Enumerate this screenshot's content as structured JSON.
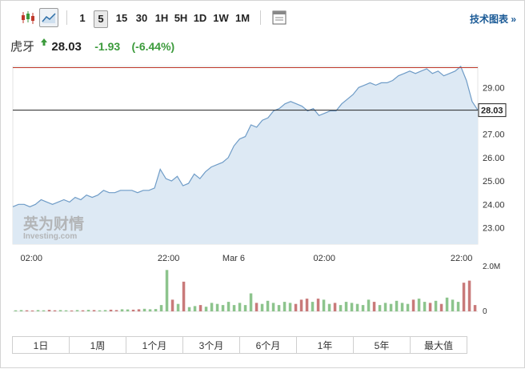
{
  "toolbar": {
    "intervals": [
      "1",
      "5",
      "15",
      "30",
      "1H",
      "5H",
      "1D",
      "1W",
      "1M"
    ],
    "active_interval": "5",
    "tech_chart_label": "技术图表 »"
  },
  "quote": {
    "name": "虎牙",
    "price": "28.03",
    "change": "-1.93",
    "change_pct": "(-6.44%)",
    "up_color": "#3c9b3c",
    "down_color": "#c0392b"
  },
  "watermark": {
    "line1": "英为财情",
    "line2": "Investing.com"
  },
  "chart_data": {
    "type": "area",
    "y_ticks": [
      "29.00",
      "28.00",
      "27.00",
      "26.00",
      "25.00",
      "24.00",
      "23.00"
    ],
    "y_tick_values": [
      29,
      28,
      27,
      26,
      25,
      24,
      23
    ],
    "ylim": [
      22.3,
      29.9
    ],
    "x_ticks": [
      {
        "label": "02:00",
        "at": 0.04
      },
      {
        "label": "22:00",
        "at": 0.335
      },
      {
        "label": "Mar 6",
        "at": 0.475
      },
      {
        "label": "02:00",
        "at": 0.67
      },
      {
        "label": "22:00",
        "at": 0.965
      }
    ],
    "current_price": 28.03,
    "current_label": "28.03",
    "high_line": 29.85,
    "values": [
      23.9,
      24.0,
      24.0,
      23.9,
      24.0,
      24.2,
      24.1,
      24.0,
      24.1,
      24.2,
      24.1,
      24.3,
      24.2,
      24.4,
      24.3,
      24.4,
      24.6,
      24.5,
      24.5,
      24.6,
      24.6,
      24.6,
      24.5,
      24.6,
      24.6,
      24.7,
      25.5,
      25.1,
      25.0,
      25.2,
      24.8,
      24.9,
      25.3,
      25.1,
      25.4,
      25.6,
      25.7,
      25.8,
      26.0,
      26.5,
      26.8,
      26.9,
      27.4,
      27.3,
      27.6,
      27.7,
      28.0,
      28.1,
      28.3,
      28.4,
      28.3,
      28.2,
      28.0,
      28.1,
      27.8,
      27.9,
      28.0,
      28.0,
      28.3,
      28.5,
      28.7,
      29.0,
      29.1,
      29.2,
      29.1,
      29.2,
      29.2,
      29.3,
      29.5,
      29.6,
      29.7,
      29.6,
      29.7,
      29.8,
      29.6,
      29.7,
      29.5,
      29.6,
      29.7,
      29.9,
      29.3,
      28.4,
      28.03
    ],
    "color_line": "#6f9cc7",
    "color_fill": "#dde9f4",
    "volume": {
      "y_ticks": [
        "2.0M",
        "0"
      ],
      "ymax": 2.0,
      "values": [
        0.05,
        0.06,
        0.05,
        0.04,
        0.06,
        0.05,
        0.07,
        0.05,
        0.06,
        0.05,
        0.04,
        0.06,
        0.05,
        0.07,
        0.06,
        0.05,
        0.06,
        0.08,
        0.06,
        0.1,
        0.09,
        0.08,
        0.1,
        0.12,
        0.1,
        0.11,
        0.3,
        1.95,
        0.55,
        0.35,
        1.4,
        0.2,
        0.25,
        0.3,
        0.22,
        0.4,
        0.35,
        0.3,
        0.45,
        0.3,
        0.4,
        0.3,
        0.85,
        0.4,
        0.35,
        0.5,
        0.4,
        0.3,
        0.45,
        0.4,
        0.35,
        0.55,
        0.6,
        0.45,
        0.6,
        0.55,
        0.35,
        0.4,
        0.3,
        0.45,
        0.4,
        0.35,
        0.3,
        0.55,
        0.45,
        0.3,
        0.4,
        0.35,
        0.5,
        0.4,
        0.35,
        0.55,
        0.6,
        0.45,
        0.4,
        0.5,
        0.35,
        0.65,
        0.55,
        0.45,
        1.35,
        1.45,
        0.3
      ],
      "colors_up": "#8dc48d",
      "colors_down": "#c97a7a",
      "dir": [
        1,
        1,
        0,
        0,
        1,
        1,
        0,
        0,
        1,
        1,
        0,
        1,
        0,
        1,
        0,
        1,
        1,
        0,
        0,
        1,
        1,
        0,
        0,
        1,
        1,
        1,
        1,
        1,
        0,
        1,
        0,
        1,
        1,
        0,
        1,
        1,
        1,
        1,
        1,
        1,
        1,
        1,
        1,
        0,
        1,
        1,
        1,
        1,
        1,
        1,
        0,
        0,
        0,
        1,
        0,
        1,
        1,
        0,
        1,
        1,
        1,
        1,
        1,
        1,
        0,
        1,
        1,
        1,
        1,
        1,
        1,
        0,
        1,
        1,
        0,
        1,
        0,
        1,
        1,
        1,
        0,
        0,
        0
      ]
    }
  },
  "ranges": [
    "1日",
    "1周",
    "1个月",
    "3个月",
    "6个月",
    "1年",
    "5年",
    "最大值"
  ]
}
